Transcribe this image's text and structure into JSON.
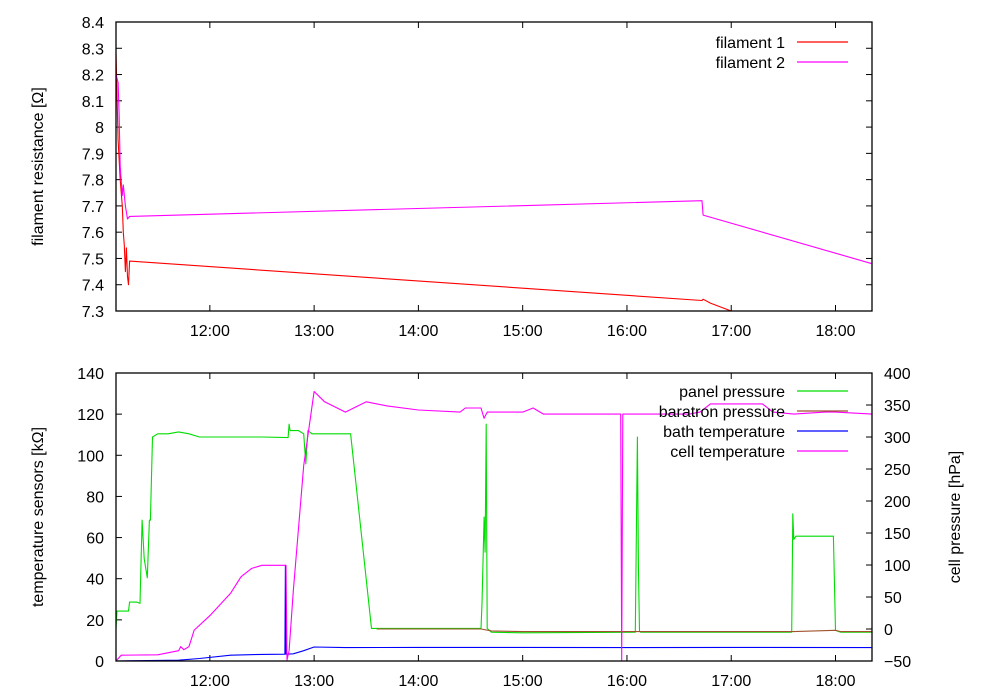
{
  "colors": {
    "filament_1": "#ff0000",
    "filament_2": "#ff00ff",
    "panel_pressure": "#00dd00",
    "baratron_pressure": "#a0522d",
    "bath_temperature": "#0000ff",
    "cell_temperature": "#ff00ff"
  },
  "chart_data": [
    {
      "type": "line",
      "ylabel": "filament resistance [Ω]",
      "ylim": [
        7.3,
        8.4
      ],
      "xlim_hours": [
        11.1,
        18.35
      ],
      "x_ticks": [
        "12:00",
        "13:00",
        "14:00",
        "15:00",
        "16:00",
        "17:00",
        "18:00"
      ],
      "y_ticks": [
        "7.3",
        "7.4",
        "7.5",
        "7.6",
        "7.7",
        "7.8",
        "7.9",
        "8",
        "8.1",
        "8.2",
        "8.3",
        "8.4"
      ],
      "legend": "top-right",
      "series": [
        {
          "name": "filament 1",
          "color": "#ff0000",
          "points": [
            [
              11.1,
              8.28
            ],
            [
              11.12,
              7.95
            ],
            [
              11.14,
              7.8
            ],
            [
              11.16,
              7.7
            ],
            [
              11.17,
              7.6
            ],
            [
              11.18,
              7.55
            ],
            [
              11.19,
              7.45
            ],
            [
              11.2,
              7.54
            ],
            [
              11.21,
              7.43
            ],
            [
              11.22,
              7.4
            ],
            [
              11.23,
              7.49
            ],
            [
              16.72,
              7.34
            ],
            [
              16.73,
              7.345
            ],
            [
              16.8,
              7.33
            ],
            [
              17.0,
              7.3
            ]
          ]
        },
        {
          "name": "filament 2",
          "color": "#ff00ff",
          "points": [
            [
              11.1,
              8.2
            ],
            [
              11.12,
              8.17
            ],
            [
              11.13,
              8.05
            ],
            [
              11.14,
              7.85
            ],
            [
              11.16,
              7.74
            ],
            [
              11.17,
              7.78
            ],
            [
              11.19,
              7.7
            ],
            [
              11.21,
              7.65
            ],
            [
              11.23,
              7.66
            ],
            [
              16.72,
              7.72
            ],
            [
              16.73,
              7.665
            ],
            [
              18.35,
              7.48
            ]
          ]
        }
      ]
    },
    {
      "type": "line",
      "ylabel": "temperature sensors [kΩ]",
      "y2label": "cell pressure [hPa]",
      "ylim": [
        0,
        140
      ],
      "y2lim": [
        -50,
        400
      ],
      "xlim_hours": [
        11.1,
        18.35
      ],
      "x_ticks": [
        "12:00",
        "13:00",
        "14:00",
        "15:00",
        "16:00",
        "17:00",
        "18:00"
      ],
      "y_ticks": [
        "0",
        "20",
        "40",
        "60",
        "80",
        "100",
        "120",
        "140"
      ],
      "y2_ticks": [
        "−50",
        "0",
        "50",
        "100",
        "150",
        "200",
        "250",
        "300",
        "350",
        "400"
      ],
      "legend": "top-right",
      "series": [
        {
          "name": "panel pressure",
          "color": "#00dd00",
          "axis": "y2",
          "points": [
            [
              11.1,
              2
            ],
            [
              11.11,
              28
            ],
            [
              11.22,
              28
            ],
            [
              11.23,
              42
            ],
            [
              11.3,
              42
            ],
            [
              11.33,
              40
            ],
            [
              11.35,
              170
            ],
            [
              11.37,
              110
            ],
            [
              11.4,
              80
            ],
            [
              11.42,
              170
            ],
            [
              11.43,
              170
            ],
            [
              11.45,
              300
            ],
            [
              11.5,
              305
            ],
            [
              11.6,
              305
            ],
            [
              11.7,
              308
            ],
            [
              11.8,
              305
            ],
            [
              11.9,
              300
            ],
            [
              12.5,
              300
            ],
            [
              12.75,
              299
            ],
            [
              12.76,
              320
            ],
            [
              12.77,
              310
            ],
            [
              12.85,
              310
            ],
            [
              12.9,
              305
            ],
            [
              12.92,
              258
            ],
            [
              12.94,
              310
            ],
            [
              12.98,
              305
            ],
            [
              13.35,
              305
            ],
            [
              13.55,
              1
            ],
            [
              14.6,
              1
            ],
            [
              14.61,
              40
            ],
            [
              14.63,
              175
            ],
            [
              14.64,
              120
            ],
            [
              14.65,
              320
            ],
            [
              14.66,
              1
            ],
            [
              14.7,
              -5
            ],
            [
              15.0,
              -6
            ],
            [
              16.08,
              -5
            ],
            [
              16.1,
              300
            ],
            [
              16.11,
              100
            ],
            [
              16.12,
              -3
            ],
            [
              16.13,
              -5
            ],
            [
              17.58,
              -5
            ],
            [
              17.59,
              180
            ],
            [
              17.6,
              140
            ],
            [
              17.62,
              145
            ],
            [
              17.98,
              145
            ],
            [
              18.0,
              -2
            ],
            [
              18.05,
              -5
            ],
            [
              18.35,
              -5
            ]
          ]
        },
        {
          "name": "baratron pressure",
          "color": "#a0522d",
          "axis": "y2",
          "points": [
            [
              13.6,
              0
            ],
            [
              14.6,
              0
            ],
            [
              14.7,
              -3
            ],
            [
              15.0,
              -4
            ],
            [
              16.12,
              -4
            ],
            [
              17.6,
              -4
            ],
            [
              18.0,
              -2
            ],
            [
              18.05,
              -4
            ],
            [
              18.35,
              -4
            ]
          ]
        },
        {
          "name": "bath temperature",
          "color": "#0000ff",
          "axis": "y",
          "points": [
            [
              11.1,
              0
            ],
            [
              11.7,
              0.4
            ],
            [
              11.9,
              1.2
            ],
            [
              12.2,
              2.8
            ],
            [
              12.5,
              3.2
            ],
            [
              12.72,
              3.3
            ],
            [
              12.725,
              46.5
            ],
            [
              12.73,
              3.3
            ],
            [
              12.8,
              3.5
            ],
            [
              12.9,
              5
            ],
            [
              13.0,
              6.8
            ],
            [
              13.3,
              6.5
            ],
            [
              14.0,
              6.6
            ],
            [
              15.0,
              6.6
            ],
            [
              16.0,
              6.5
            ],
            [
              17.0,
              6.6
            ],
            [
              18.35,
              6.5
            ]
          ]
        },
        {
          "name": "cell temperature",
          "color": "#ff00ff",
          "axis": "y",
          "points": [
            [
              11.1,
              0
            ],
            [
              11.15,
              2.8
            ],
            [
              11.5,
              3
            ],
            [
              11.7,
              5
            ],
            [
              11.72,
              7
            ],
            [
              11.75,
              5.5
            ],
            [
              11.8,
              7
            ],
            [
              11.85,
              15
            ],
            [
              12.0,
              22
            ],
            [
              12.2,
              33
            ],
            [
              12.3,
              41
            ],
            [
              12.4,
              45
            ],
            [
              12.5,
              46.5
            ],
            [
              12.73,
              46.5
            ],
            [
              12.74,
              0.5
            ],
            [
              12.76,
              5
            ],
            [
              12.8,
              34
            ],
            [
              12.9,
              95
            ],
            [
              13.0,
              131
            ],
            [
              13.1,
              126
            ],
            [
              13.3,
              121
            ],
            [
              13.5,
              126
            ],
            [
              13.7,
              124
            ],
            [
              14.0,
              122
            ],
            [
              14.4,
              121
            ],
            [
              14.45,
              123
            ],
            [
              14.6,
              123
            ],
            [
              14.63,
              118
            ],
            [
              14.66,
              121
            ],
            [
              15.0,
              121
            ],
            [
              15.1,
              123
            ],
            [
              15.2,
              120
            ],
            [
              15.94,
              120
            ],
            [
              15.95,
              0.5
            ],
            [
              15.96,
              120
            ],
            [
              16.6,
              120
            ],
            [
              16.7,
              121
            ],
            [
              16.8,
              125
            ],
            [
              17.3,
              125
            ],
            [
              17.4,
              121
            ],
            [
              17.6,
              120
            ],
            [
              17.9,
              121
            ],
            [
              18.0,
              121
            ],
            [
              18.35,
              120
            ]
          ]
        }
      ]
    }
  ]
}
